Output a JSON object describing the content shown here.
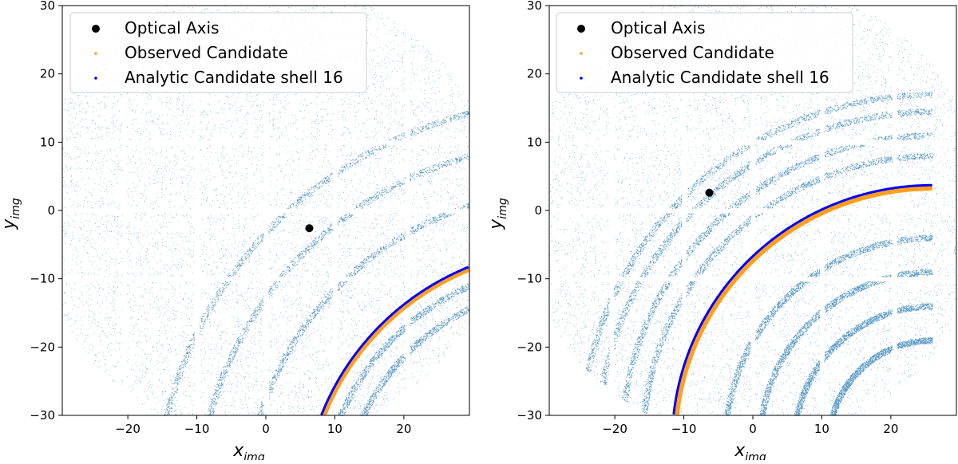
{
  "chart_data": [
    {
      "type": "scatter",
      "xlabel": "x_img",
      "xlabel_main": "x",
      "xlabel_sub": "img",
      "ylabel": "y_img",
      "ylabel_main": "y",
      "ylabel_sub": "img",
      "xlim": [
        -29.5,
        29.5
      ],
      "ylim": [
        -30,
        30
      ],
      "x_ticks": [
        -20,
        -10,
        0,
        10,
        20
      ],
      "x_tick_labels": [
        "−20",
        "−10",
        "0",
        "10",
        "20"
      ],
      "y_ticks": [
        -30,
        -20,
        -10,
        0,
        10,
        20,
        30
      ],
      "y_tick_labels": [
        "−30",
        "−20",
        "−10",
        "0",
        "10",
        "20",
        "30"
      ],
      "legend_position": "top-left",
      "legend": [
        {
          "label": "Optical Axis",
          "color": "#000000",
          "marker": "large-dot"
        },
        {
          "label": "Observed Candidate",
          "color": "#ff9f1c",
          "marker": "small-dot"
        },
        {
          "label": "Analytic Candidate shell 16",
          "color": "#0000ff",
          "marker": "small-dot"
        }
      ],
      "optical_axis": {
        "x": 6.3,
        "y": -2.6
      },
      "analytic_arc": {
        "center": [
          44.0,
          -44.0
        ],
        "radius": 38.6,
        "color": "#0000ff"
      },
      "observed_arc": {
        "center": [
          44.0,
          -44.0
        ],
        "radius": 38.3,
        "color": "#ff9f1c"
      },
      "background_color": "#1f77b4",
      "dense_arcs": [
        {
          "center": [
            44.0,
            -44.0
          ],
          "radius": 47.0
        },
        {
          "center": [
            44.0,
            -44.0
          ],
          "radius": 54.0
        },
        {
          "center": [
            44.0,
            -44.0
          ],
          "radius": 60.0
        },
        {
          "center": [
            44.0,
            -44.0
          ],
          "radius": 36.0
        },
        {
          "center": [
            44.0,
            -44.0
          ],
          "radius": 33.0
        }
      ]
    },
    {
      "type": "scatter",
      "xlabel": "x_img",
      "xlabel_main": "x",
      "xlabel_sub": "img",
      "ylabel": "y_img",
      "ylabel_main": "y",
      "ylabel_sub": "img",
      "xlim": [
        -29.5,
        29.5
      ],
      "ylim": [
        -30,
        30
      ],
      "x_ticks": [
        -20,
        -10,
        0,
        10,
        20
      ],
      "x_tick_labels": [
        "−20",
        "−10",
        "0",
        "10",
        "20"
      ],
      "y_ticks": [
        -30,
        -20,
        -10,
        0,
        10,
        20,
        30
      ],
      "y_tick_labels": [
        "−30",
        "−20",
        "−10",
        "0",
        "10",
        "20",
        "30"
      ],
      "legend_position": "top-left",
      "legend": [
        {
          "label": "Optical Axis",
          "color": "#000000",
          "marker": "large-dot"
        },
        {
          "label": "Observed Candidate",
          "color": "#ff9f1c",
          "marker": "small-dot"
        },
        {
          "label": "Analytic Candidate shell 16",
          "color": "#0000ff",
          "marker": "small-dot"
        }
      ],
      "optical_axis": {
        "x": -6.3,
        "y": 2.6
      },
      "analytic_arc": {
        "center": [
          26.0,
          -34.0
        ],
        "radius": 37.7,
        "color": "#0000ff"
      },
      "observed_arc": {
        "center": [
          26.0,
          -34.0
        ],
        "radius": 37.3,
        "color": "#ff9f1c"
      },
      "background_color": "#1f77b4",
      "dense_arcs": [
        {
          "center": [
            26.0,
            -34.0
          ],
          "radius": 42.0
        },
        {
          "center": [
            26.0,
            -34.0
          ],
          "radius": 45.0
        },
        {
          "center": [
            26.0,
            -34.0
          ],
          "radius": 48.5
        },
        {
          "center": [
            26.0,
            -34.0
          ],
          "radius": 51.0
        },
        {
          "center": [
            26.0,
            -34.0
          ],
          "radius": 30.0
        },
        {
          "center": [
            26.0,
            -34.0
          ],
          "radius": 25.0
        },
        {
          "center": [
            26.0,
            -34.0
          ],
          "radius": 20.0
        },
        {
          "center": [
            26.0,
            -34.0
          ],
          "radius": 15.0
        }
      ]
    }
  ]
}
